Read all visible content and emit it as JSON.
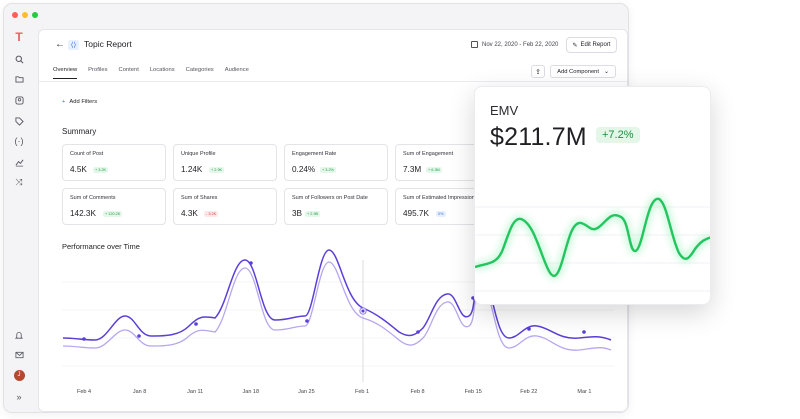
{
  "report": {
    "title": "Topic Report",
    "date_range": "Nov 22, 2020 - Feb 22, 2020",
    "edit_label": "Edit Report",
    "add_component_label": "Add Component",
    "add_filters_label": "Add Filters"
  },
  "tabs": [
    "Overview",
    "Profiles",
    "Content",
    "Locations",
    "Categories",
    "Audience"
  ],
  "summary": {
    "title": "Summary",
    "cards": [
      {
        "label": "Count of Post",
        "value": "4.5K",
        "change": "+ 3.2K",
        "trend": "up"
      },
      {
        "label": "Unique Profile",
        "value": "1.24K",
        "change": "+ 2.9K",
        "trend": "up"
      },
      {
        "label": "Engagement Rate",
        "value": "0.24%",
        "change": "+ 3.2%",
        "trend": "up"
      },
      {
        "label": "Sum of Engagement",
        "value": "7.3M",
        "change": "+ 6.3M",
        "trend": "up"
      },
      {
        "label": "Sum of Comments",
        "value": "142.3K",
        "change": "+ 120.2K",
        "trend": "up"
      },
      {
        "label": "Sum of Shares",
        "value": "4.3K",
        "change": "- 3.2K",
        "trend": "down"
      },
      {
        "label": "Sum of Followers on Post Date",
        "value": "3B",
        "change": "+ 2.9B",
        "trend": "up"
      },
      {
        "label": "Sum of Estimated Impressions",
        "value": "495.7K",
        "change": "0%",
        "trend": "neutral"
      }
    ]
  },
  "performance": {
    "title": "Performance over Time",
    "x_labels": [
      "Feb 4",
      "Jan 8",
      "Jan 11",
      "Jan 18",
      "Jan 25",
      "Feb 1",
      "Feb 8",
      "Feb 15",
      "Feb 22",
      "Mar 1"
    ]
  },
  "emv": {
    "label": "EMV",
    "value": "$211.7M",
    "change": "+7.2%"
  },
  "colors": {
    "accent": "#5b3fd6",
    "accent_light": "#b7a7ef",
    "positive": "#22c55e",
    "brand": "#ef5c62"
  },
  "icons": {
    "rail": [
      "logo-icon",
      "search-icon",
      "folder-icon",
      "user-icon",
      "tag-icon",
      "broadcast-icon",
      "chart-icon",
      "shuffle-icon",
      "bell-icon",
      "mail-icon",
      "avatar",
      "expand-icon"
    ]
  }
}
